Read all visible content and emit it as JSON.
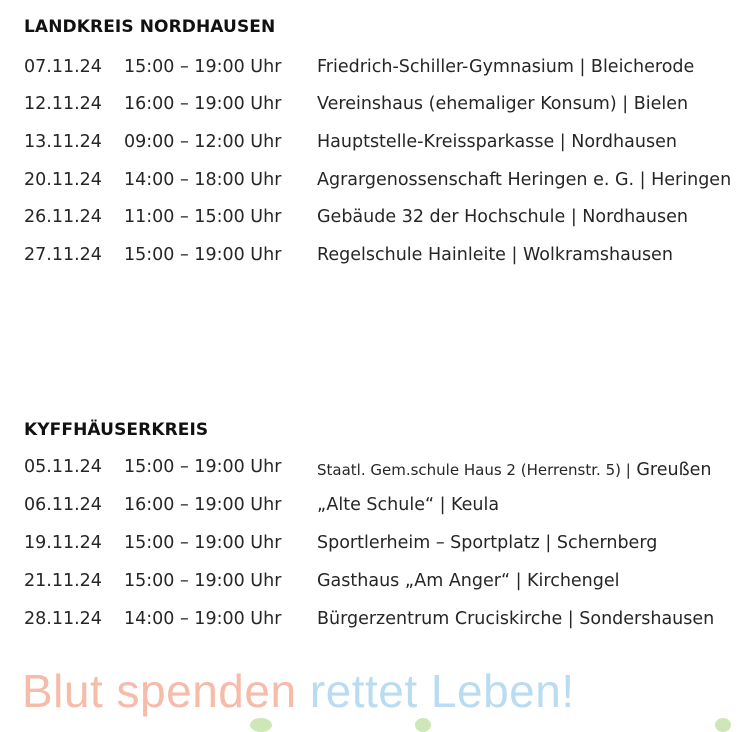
{
  "sections": [
    {
      "title": "LANDKREIS NORDHAUSEN",
      "rows": [
        {
          "date": "07.11.24",
          "time": "15:00 – 19:00 Uhr",
          "location": "Friedrich-Schiller-Gymnasium | Bleicherode"
        },
        {
          "date": "12.11.24",
          "time": "16:00 – 19:00 Uhr",
          "location": "Vereinshaus (ehemaliger Konsum) | Bielen"
        },
        {
          "date": "13.11.24",
          "time": "09:00 – 12:00 Uhr",
          "location": "Hauptstelle-Kreissparkasse | Nordhausen"
        },
        {
          "date": "20.11.24",
          "time": "14:00 – 18:00 Uhr",
          "location": "Agrargenossenschaft Heringen e. G. | Heringen"
        },
        {
          "date": "26.11.24",
          "time": "11:00 – 15:00 Uhr",
          "location": "Gebäude 32 der Hochschule | Nordhausen"
        },
        {
          "date": "27.11.24",
          "time": "15:00 – 19:00 Uhr",
          "location": "Regelschule Hainleite | Wolkramshausen"
        }
      ]
    },
    {
      "title": "KYFFHÄUSERKREIS",
      "rows": [
        {
          "date": "05.11.24",
          "time": "15:00 – 19:00 Uhr",
          "location": "Staatl. Gem.schule Haus 2 (Herrenstr. 5) |",
          "city": " Greußen"
        },
        {
          "date": "06.11.24",
          "time": "16:00 – 19:00 Uhr",
          "location": "„Alte Schule“ | Keula"
        },
        {
          "date": "19.11.24",
          "time": "15:00 – 19:00 Uhr",
          "location": "Sportlerheim – Sportplatz | Schernberg"
        },
        {
          "date": "21.11.24",
          "time": "15:00 – 19:00 Uhr",
          "location": "Gasthaus „Am Anger“ | Kirchengel"
        },
        {
          "date": "28.11.24",
          "time": "14:00 – 19:00 Uhr",
          "location": "Bürgerzentrum Cruciskirche | Sondershausen"
        }
      ]
    }
  ],
  "banner": {
    "part1": "Blut spenden",
    "part2": "rettet Leben!",
    "color1": "#f6bba9",
    "color2": "#b9dcf3"
  }
}
